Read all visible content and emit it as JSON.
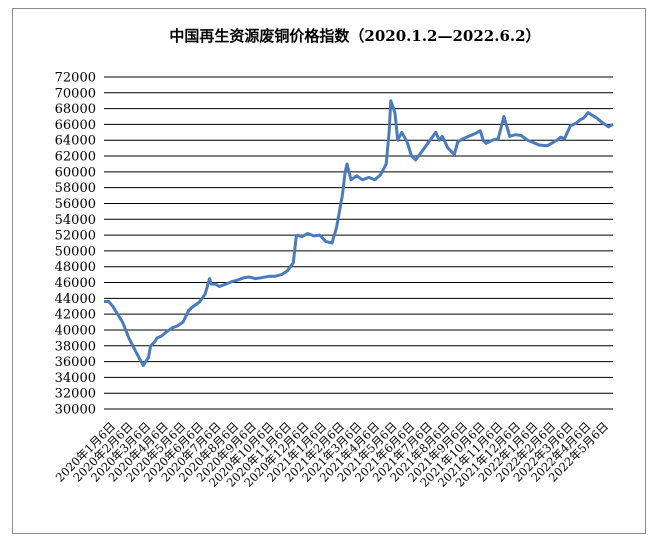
{
  "chart_data": {
    "type": "line",
    "title": "中国再生资源废铜价格指数（2020.1.2—2022.6.2）",
    "xlabel": "",
    "ylabel": "",
    "ylim": [
      30000,
      72000
    ],
    "yticks": [
      30000,
      32000,
      34000,
      36000,
      38000,
      40000,
      42000,
      44000,
      46000,
      48000,
      50000,
      52000,
      54000,
      56000,
      58000,
      60000,
      62000,
      64000,
      66000,
      68000,
      70000,
      72000
    ],
    "xticks": [
      "2020年1月6日",
      "2020年2月6日",
      "2020年3月6日",
      "2020年4月6日",
      "2020年5月6日",
      "2020年6月6日",
      "2020年7月6日",
      "2020年8月6日",
      "2020年9月6日",
      "2020年10月6日",
      "2020年11月6日",
      "2020年12月6日",
      "2021年1月6日",
      "2021年2月6日",
      "2021年3月6日",
      "2021年4月6日",
      "2021年5月6日",
      "2021年6月6日",
      "2021年7月6日",
      "2021年8月6日",
      "2021年9月6日",
      "2021年10月6日",
      "2021年11月6日",
      "2021年12月6日",
      "2022年1月6日",
      "2022年2月6日",
      "2022年3月6日",
      "2022年4月6日",
      "2022年5月6日"
    ],
    "grid": true,
    "legend": "none",
    "color": "#4a7bbd",
    "series": [
      {
        "x": [
          "2020-01-02",
          "2020-01-10",
          "2020-01-17",
          "2020-02-03",
          "2020-02-14",
          "2020-02-28",
          "2020-03-10",
          "2020-03-19",
          "2020-03-23",
          "2020-03-30",
          "2020-04-03",
          "2020-04-10",
          "2020-04-20",
          "2020-04-30",
          "2020-05-08",
          "2020-05-18",
          "2020-05-28",
          "2020-06-05",
          "2020-06-15",
          "2020-06-25",
          "2020-07-03",
          "2020-07-06",
          "2020-07-13",
          "2020-07-20",
          "2020-07-31",
          "2020-08-10",
          "2020-08-20",
          "2020-08-31",
          "2020-09-10",
          "2020-09-20",
          "2020-09-30",
          "2020-10-15",
          "2020-10-25",
          "2020-11-05",
          "2020-11-15",
          "2020-11-25",
          "2020-11-30",
          "2020-12-03",
          "2020-12-10",
          "2020-12-20",
          "2020-12-31",
          "2021-01-10",
          "2021-01-20",
          "2021-01-31",
          "2021-02-08",
          "2021-02-18",
          "2021-02-23",
          "2021-02-26",
          "2021-03-05",
          "2021-03-15",
          "2021-03-25",
          "2021-04-05",
          "2021-04-15",
          "2021-04-25",
          "2021-05-05",
          "2021-05-10",
          "2021-05-13",
          "2021-05-20",
          "2021-05-25",
          "2021-06-01",
          "2021-06-10",
          "2021-06-18",
          "2021-06-25",
          "2021-07-05",
          "2021-07-15",
          "2021-07-25",
          "2021-07-30",
          "2021-08-05",
          "2021-08-10",
          "2021-08-20",
          "2021-08-31",
          "2021-09-06",
          "2021-09-15",
          "2021-09-25",
          "2021-10-05",
          "2021-10-15",
          "2021-10-20",
          "2021-10-25",
          "2021-11-05",
          "2021-11-15",
          "2021-11-25",
          "2021-12-05",
          "2021-12-15",
          "2021-12-25",
          "2022-01-05",
          "2022-01-15",
          "2022-01-25",
          "2022-02-08",
          "2022-02-15",
          "2022-02-25",
          "2022-03-03",
          "2022-03-10",
          "2022-03-20",
          "2022-03-31",
          "2022-04-06",
          "2022-04-12",
          "2022-04-20",
          "2022-04-26",
          "2022-05-05",
          "2022-05-15",
          "2022-05-25",
          "2022-06-02"
        ],
        "values": [
          43600,
          43600,
          43000,
          41000,
          39000,
          37000,
          35500,
          36500,
          38000,
          38500,
          39000,
          39200,
          39800,
          40300,
          40500,
          41000,
          42500,
          43000,
          43500,
          44500,
          46500,
          45800,
          45800,
          45500,
          45800,
          46100,
          46300,
          46600,
          46700,
          46500,
          46600,
          46800,
          46800,
          47000,
          47500,
          48500,
          51800,
          52000,
          51800,
          52200,
          51900,
          52000,
          51200,
          51000,
          53000,
          57000,
          60000,
          61000,
          59000,
          59500,
          59000,
          59300,
          59000,
          59600,
          61000,
          65000,
          69000,
          67500,
          64000,
          65000,
          63800,
          62000,
          61500,
          62500,
          63500,
          64500,
          65000,
          64000,
          64500,
          63000,
          62200,
          63800,
          64200,
          64500,
          64800,
          65200,
          64000,
          63600,
          64000,
          64200,
          67000,
          64500,
          64700,
          64600,
          64000,
          63700,
          63400,
          63300,
          63600,
          64000,
          64400,
          64200,
          65800,
          66200,
          66600,
          66800,
          67500,
          67200,
          66800,
          66200,
          65700,
          66000
        ]
      }
    ]
  }
}
